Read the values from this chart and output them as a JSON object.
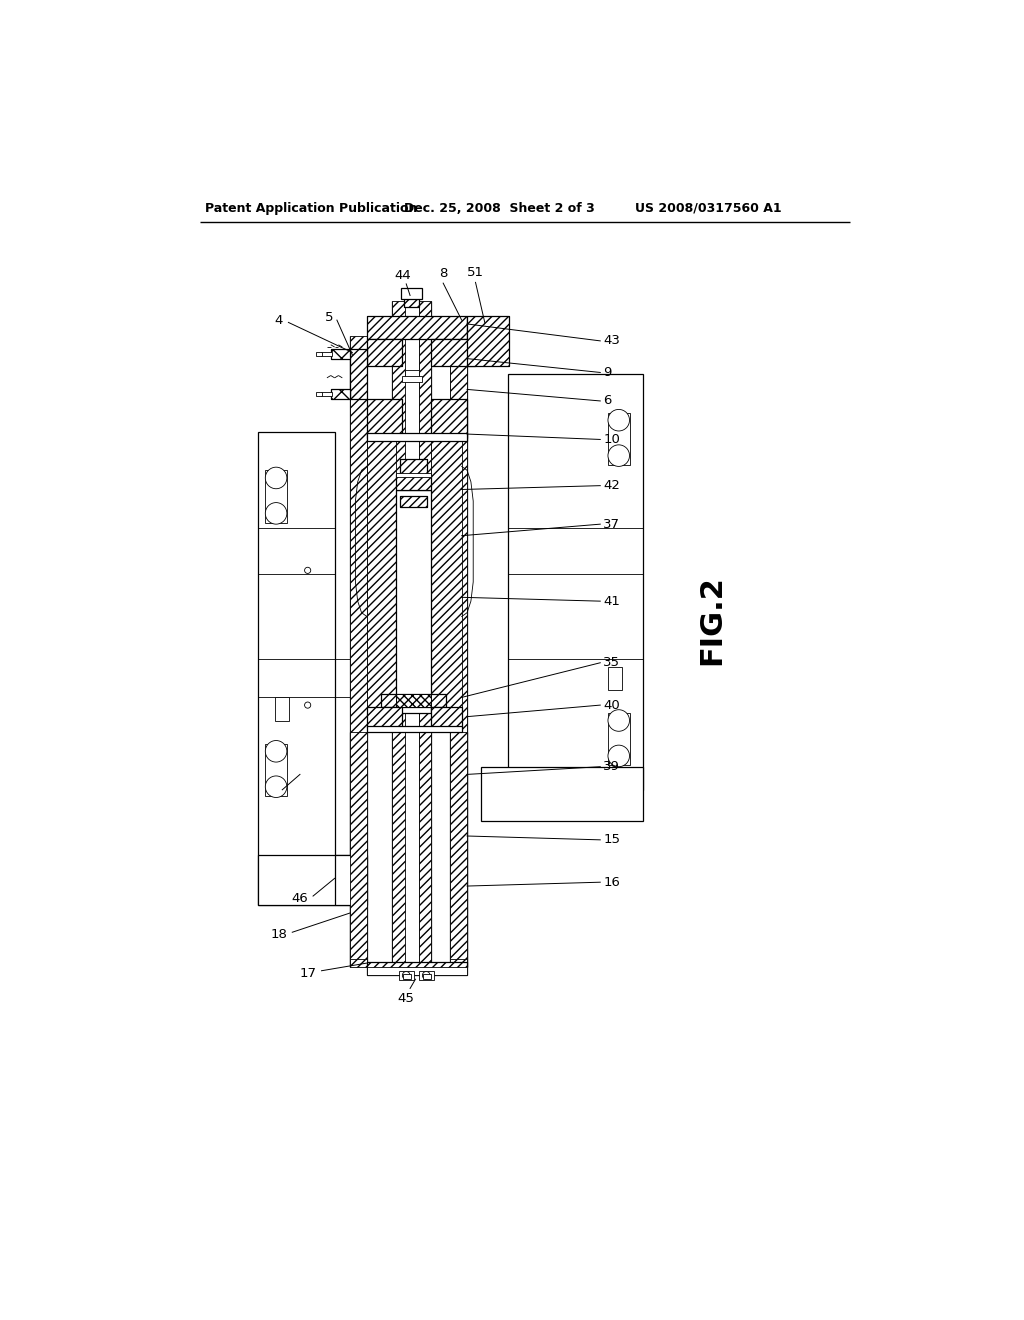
{
  "background": "#ffffff",
  "header_left": "Patent Application Publication",
  "header_mid": "Dec. 25, 2008  Sheet 2 of 3",
  "header_right": "US 2008/0317560 A1",
  "fig_label": "FIG.2",
  "lw_thin": 0.6,
  "lw_med": 0.9,
  "lw_thick": 1.2,
  "right_labels": [
    [
      "43",
      610,
      237
    ],
    [
      "9",
      610,
      278
    ],
    [
      "6",
      610,
      315
    ],
    [
      "10",
      610,
      365
    ],
    [
      "42",
      610,
      425
    ],
    [
      "37",
      610,
      475
    ],
    [
      "41",
      610,
      575
    ],
    [
      "35",
      610,
      655
    ],
    [
      "40",
      610,
      710
    ],
    [
      "39",
      610,
      790
    ],
    [
      "15",
      610,
      885
    ],
    [
      "16",
      610,
      940
    ]
  ]
}
